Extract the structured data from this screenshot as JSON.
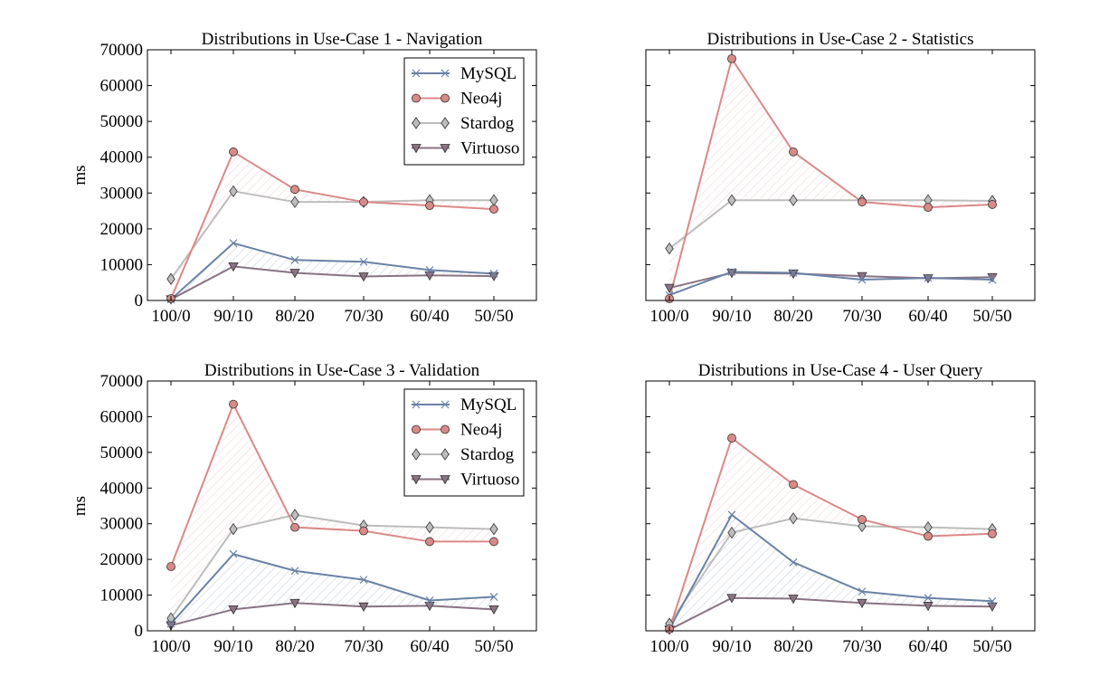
{
  "styles": {
    "MySQL": {
      "color": "#6a82a6",
      "marker": "x"
    },
    "Neo4j": {
      "color": "#d98a88",
      "marker": "circle"
    },
    "Stardog": {
      "color": "#bdbdbd",
      "marker": "diamond"
    },
    "Virtuoso": {
      "color": "#8a7384",
      "marker": "triangle-down"
    }
  },
  "chart_data": [
    {
      "type": "line",
      "title": "Distributions in Use-Case 1 - Navigation",
      "ylabel": "ms",
      "categories": [
        "100/0",
        "90/10",
        "80/20",
        "70/30",
        "60/40",
        "50/50"
      ],
      "ylim": [
        0,
        70000
      ],
      "yticks": [
        "0",
        "10000",
        "20000",
        "30000",
        "40000",
        "50000",
        "60000",
        "70000"
      ],
      "show_ytick_labels": true,
      "legend": "top-right",
      "series": [
        {
          "name": "MySQL",
          "values": [
            300,
            16000,
            11300,
            10800,
            8500,
            7500
          ]
        },
        {
          "name": "Neo4j",
          "values": [
            500,
            41500,
            31000,
            27500,
            26500,
            25500
          ]
        },
        {
          "name": "Stardog",
          "values": [
            6000,
            30500,
            27500,
            27500,
            28000,
            28000
          ]
        },
        {
          "name": "Virtuoso",
          "values": [
            300,
            9500,
            7700,
            6700,
            7000,
            6800
          ]
        }
      ],
      "fills": [
        [
          "Neo4j",
          "Stardog"
        ],
        [
          "MySQL",
          "Virtuoso"
        ]
      ]
    },
    {
      "type": "line",
      "title": "Distributions in Use-Case 2 - Statistics",
      "ylabel": "",
      "categories": [
        "100/0",
        "90/10",
        "80/20",
        "70/30",
        "60/40",
        "50/50"
      ],
      "ylim": [
        0,
        70000
      ],
      "yticks": [
        "0",
        "10000",
        "20000",
        "30000",
        "40000",
        "50000",
        "60000",
        "70000"
      ],
      "show_ytick_labels": false,
      "legend": "",
      "series": [
        {
          "name": "MySQL",
          "values": [
            1500,
            8000,
            7700,
            5800,
            6300,
            5800
          ]
        },
        {
          "name": "Neo4j",
          "values": [
            500,
            67500,
            41500,
            27500,
            26000,
            26800
          ]
        },
        {
          "name": "Stardog",
          "values": [
            14500,
            28000,
            28000,
            28000,
            28000,
            27800
          ]
        },
        {
          "name": "Virtuoso",
          "values": [
            3500,
            7700,
            7500,
            6800,
            6200,
            6500
          ]
        }
      ],
      "fills": [
        [
          "Neo4j",
          "Stardog"
        ],
        [
          "MySQL",
          "Virtuoso"
        ]
      ]
    },
    {
      "type": "line",
      "title": "Distributions in Use-Case 3 - Validation",
      "ylabel": "ms",
      "categories": [
        "100/0",
        "90/10",
        "80/20",
        "70/30",
        "60/40",
        "50/50"
      ],
      "ylim": [
        0,
        70000
      ],
      "yticks": [
        "0",
        "10000",
        "20000",
        "30000",
        "40000",
        "50000",
        "60000",
        "70000"
      ],
      "show_ytick_labels": true,
      "legend": "top-right",
      "series": [
        {
          "name": "MySQL",
          "values": [
            2000,
            21500,
            16800,
            14300,
            8500,
            9500
          ]
        },
        {
          "name": "Neo4j",
          "values": [
            18000,
            63500,
            29000,
            28000,
            25000,
            25000
          ]
        },
        {
          "name": "Stardog",
          "values": [
            3500,
            28500,
            32500,
            29500,
            29000,
            28500
          ]
        },
        {
          "name": "Virtuoso",
          "values": [
            1500,
            6000,
            7800,
            6800,
            7000,
            6000
          ]
        }
      ],
      "fills": [
        [
          "Neo4j",
          "Stardog"
        ],
        [
          "MySQL",
          "Virtuoso"
        ]
      ]
    },
    {
      "type": "line",
      "title": "Distributions in Use-Case 4 - User Query",
      "ylabel": "",
      "categories": [
        "100/0",
        "90/10",
        "80/20",
        "70/30",
        "60/40",
        "50/50"
      ],
      "ylim": [
        0,
        70000
      ],
      "yticks": [
        "0",
        "10000",
        "20000",
        "30000",
        "40000",
        "50000",
        "60000",
        "70000"
      ],
      "show_ytick_labels": false,
      "legend": "",
      "series": [
        {
          "name": "MySQL",
          "values": [
            500,
            32500,
            19200,
            11000,
            9200,
            8300
          ]
        },
        {
          "name": "Neo4j",
          "values": [
            500,
            54000,
            41000,
            31200,
            26500,
            27200
          ]
        },
        {
          "name": "Stardog",
          "values": [
            2000,
            27500,
            31500,
            29300,
            29000,
            28500
          ]
        },
        {
          "name": "Virtuoso",
          "values": [
            300,
            9200,
            9000,
            7800,
            7000,
            6800
          ]
        }
      ],
      "fills": [
        [
          "Neo4j",
          "Stardog"
        ],
        [
          "MySQL",
          "Virtuoso"
        ]
      ]
    }
  ]
}
